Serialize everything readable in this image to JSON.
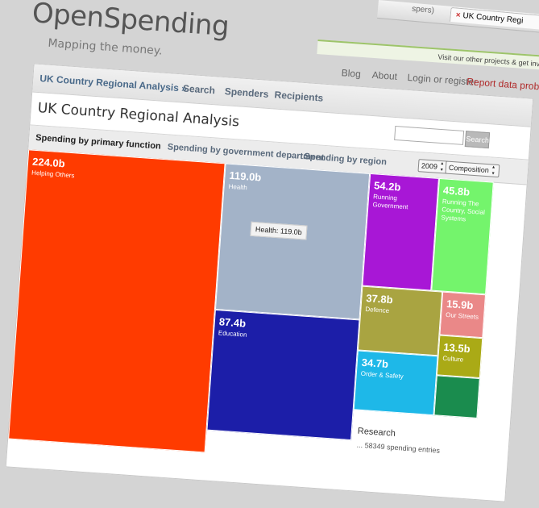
{
  "browser": {
    "prev_tab_fragment": "spers)",
    "active_tab": "UK Country Regi"
  },
  "site": {
    "logo": "OpenSpending",
    "tagline": "Mapping the money.",
    "visit_bar": "Visit our other projects & get involved on"
  },
  "top_nav": {
    "blog": "Blog",
    "about": "About",
    "login": "Login or register",
    "report": "Report data problems"
  },
  "sub_nav": {
    "breadcrumb": "UK Country Regional Analysis »",
    "search": "Search",
    "spenders": "Spenders",
    "recipients": "Recipients"
  },
  "page": {
    "title": "UK Country Regional Analysis",
    "search_button": "Search",
    "search_placeholder": ""
  },
  "view_tabs": {
    "primary": "Spending by primary function",
    "department": "Spending by government department",
    "region": "Spending by region"
  },
  "controls": {
    "year": "2009",
    "mode": "Composition"
  },
  "treemap": {
    "tooltip": "Health: 119.0b",
    "cells": [
      {
        "value": "224.0b",
        "label": "Helping Others",
        "color": "#ff3b00"
      },
      {
        "value": "119.0b",
        "label": "Health",
        "color": "#a3b3c8"
      },
      {
        "value": "87.4b",
        "label": "Education",
        "color": "#1c1ea8"
      },
      {
        "value": "54.2b",
        "label": "Running Government",
        "color": "#a817d6"
      },
      {
        "value": "45.8b",
        "label": "Running The Country, Social Systems",
        "color": "#74f46c"
      },
      {
        "value": "37.8b",
        "label": "Defence",
        "color": "#a9a441"
      },
      {
        "value": "15.9b",
        "label": "Our Streets",
        "color": "#ea8888"
      },
      {
        "value": "13.5b",
        "label": "Culture",
        "color": "#aaaa16"
      },
      {
        "value": "34.7b",
        "label": "Order & Safety",
        "color": "#1eb8e8"
      },
      {
        "value": "",
        "label": "",
        "color": "#1a8c4e"
      }
    ]
  },
  "research": {
    "heading": "Research",
    "note": "... 58349 spending entries"
  }
}
